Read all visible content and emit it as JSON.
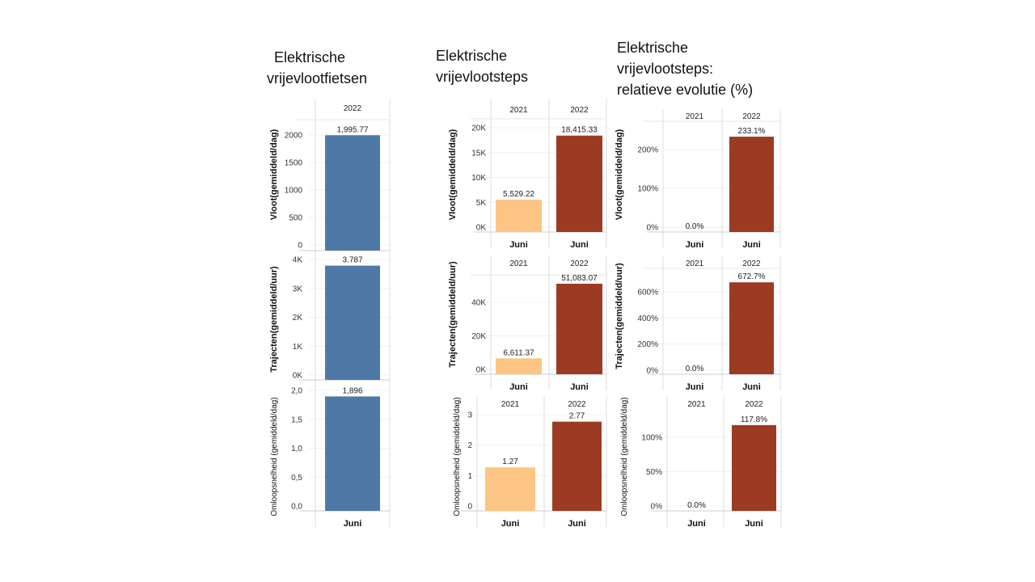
{
  "titles": {
    "fietsen": [
      "Elektrische",
      "vrijevlootfietsen"
    ],
    "steps": [
      "Elektrische",
      "vrijevlootsteps"
    ],
    "steps_rel": [
      "Elektrische",
      "vrijevlootsteps:",
      "relatieve evolutie (%)"
    ]
  },
  "colors": {
    "bikes": "#4e79a7",
    "y2021": "#fdc583",
    "y2022": "#9c3b22"
  },
  "chart_data": [
    {
      "type": "bar",
      "title": "Elektrische vrijevlootfietsen",
      "columns": [
        "2022"
      ],
      "xlabels": [
        "Juni"
      ],
      "panels": [
        {
          "ylabel": "Vloot(gemiddeld/dag)",
          "ticks": [
            0,
            500,
            1000,
            1500,
            2000
          ],
          "tick_labels": [
            "0",
            "500",
            "1000",
            "1500",
            "2000"
          ],
          "values": [
            1995.77
          ],
          "value_labels": [
            "1,995.77"
          ]
        },
        {
          "ylabel": "Trajecten(gemiddeld/uur)",
          "ticks": [
            0,
            1000,
            2000,
            3000,
            4000
          ],
          "tick_labels": [
            "0K",
            "1K",
            "2K",
            "3K",
            "4K"
          ],
          "values": [
            3787
          ],
          "value_labels": [
            "3.787"
          ]
        },
        {
          "ylabel": "Omloopsnelheid (gemiddeld/dag)",
          "ticks": [
            0,
            0.5,
            1,
            1.5,
            2
          ],
          "tick_labels": [
            "0,0",
            "0,5",
            "1,0",
            "1,5",
            "2,0"
          ],
          "values": [
            1.896
          ],
          "value_labels": [
            "1,896"
          ]
        }
      ]
    },
    {
      "type": "bar",
      "title": "Elektrische vrijevlootsteps",
      "columns": [
        "2021",
        "2022"
      ],
      "xlabels": [
        "Juni",
        "Juni"
      ],
      "panels": [
        {
          "ylabel": "Vloot(gemiddeld/dag)",
          "ticks": [
            0,
            5000,
            10000,
            15000,
            20000
          ],
          "tick_labels": [
            "0K",
            "5K",
            "10K",
            "15K",
            "20K"
          ],
          "values": [
            5529.22,
            18415.33
          ],
          "value_labels": [
            "5,529.22",
            "18,415.33"
          ]
        },
        {
          "ylabel": "Trajecten(gemiddeld/uur)",
          "ticks": [
            0,
            20000,
            40000
          ],
          "tick_labels": [
            "0K",
            "20K",
            "40K"
          ],
          "values": [
            6611.37,
            51083.07
          ],
          "value_labels": [
            "6,611.37",
            "51,083.07"
          ]
        },
        {
          "ylabel": "Omloopsnelheid (gemiddeld/dag)",
          "ticks": [
            0,
            1,
            2,
            3
          ],
          "tick_labels": [
            "0",
            "1",
            "2",
            "3"
          ],
          "values": [
            1.27,
            2.77
          ],
          "value_labels": [
            "1.27",
            "2.77"
          ]
        }
      ]
    },
    {
      "type": "bar",
      "title": "Elektrische vrijevlootsteps: relatieve evolutie (%)",
      "columns": [
        "2021",
        "2022"
      ],
      "xlabels": [
        "Juni",
        "Juni"
      ],
      "panels": [
        {
          "ylabel": "Vloot(gemiddeld/dag)",
          "ticks": [
            0,
            100,
            200
          ],
          "tick_labels": [
            "0%",
            "100%",
            "200%"
          ],
          "values": [
            0,
            233.1
          ],
          "value_labels": [
            "0.0%",
            "233.1%"
          ]
        },
        {
          "ylabel": "Trajecten(gemiddeld/uur)",
          "ticks": [
            0,
            200,
            400,
            600
          ],
          "tick_labels": [
            "0%",
            "200%",
            "400%",
            "600%"
          ],
          "values": [
            0,
            672.7
          ],
          "value_labels": [
            "0.0%",
            "672.7%"
          ]
        },
        {
          "ylabel": "Omloopsnelheid (gemiddeld/dag)",
          "ticks": [
            0,
            50,
            100
          ],
          "tick_labels": [
            "0%",
            "50%",
            "100%"
          ],
          "values": [
            0,
            117.8
          ],
          "value_labels": [
            "0.0%",
            "117.8%"
          ]
        }
      ]
    }
  ]
}
